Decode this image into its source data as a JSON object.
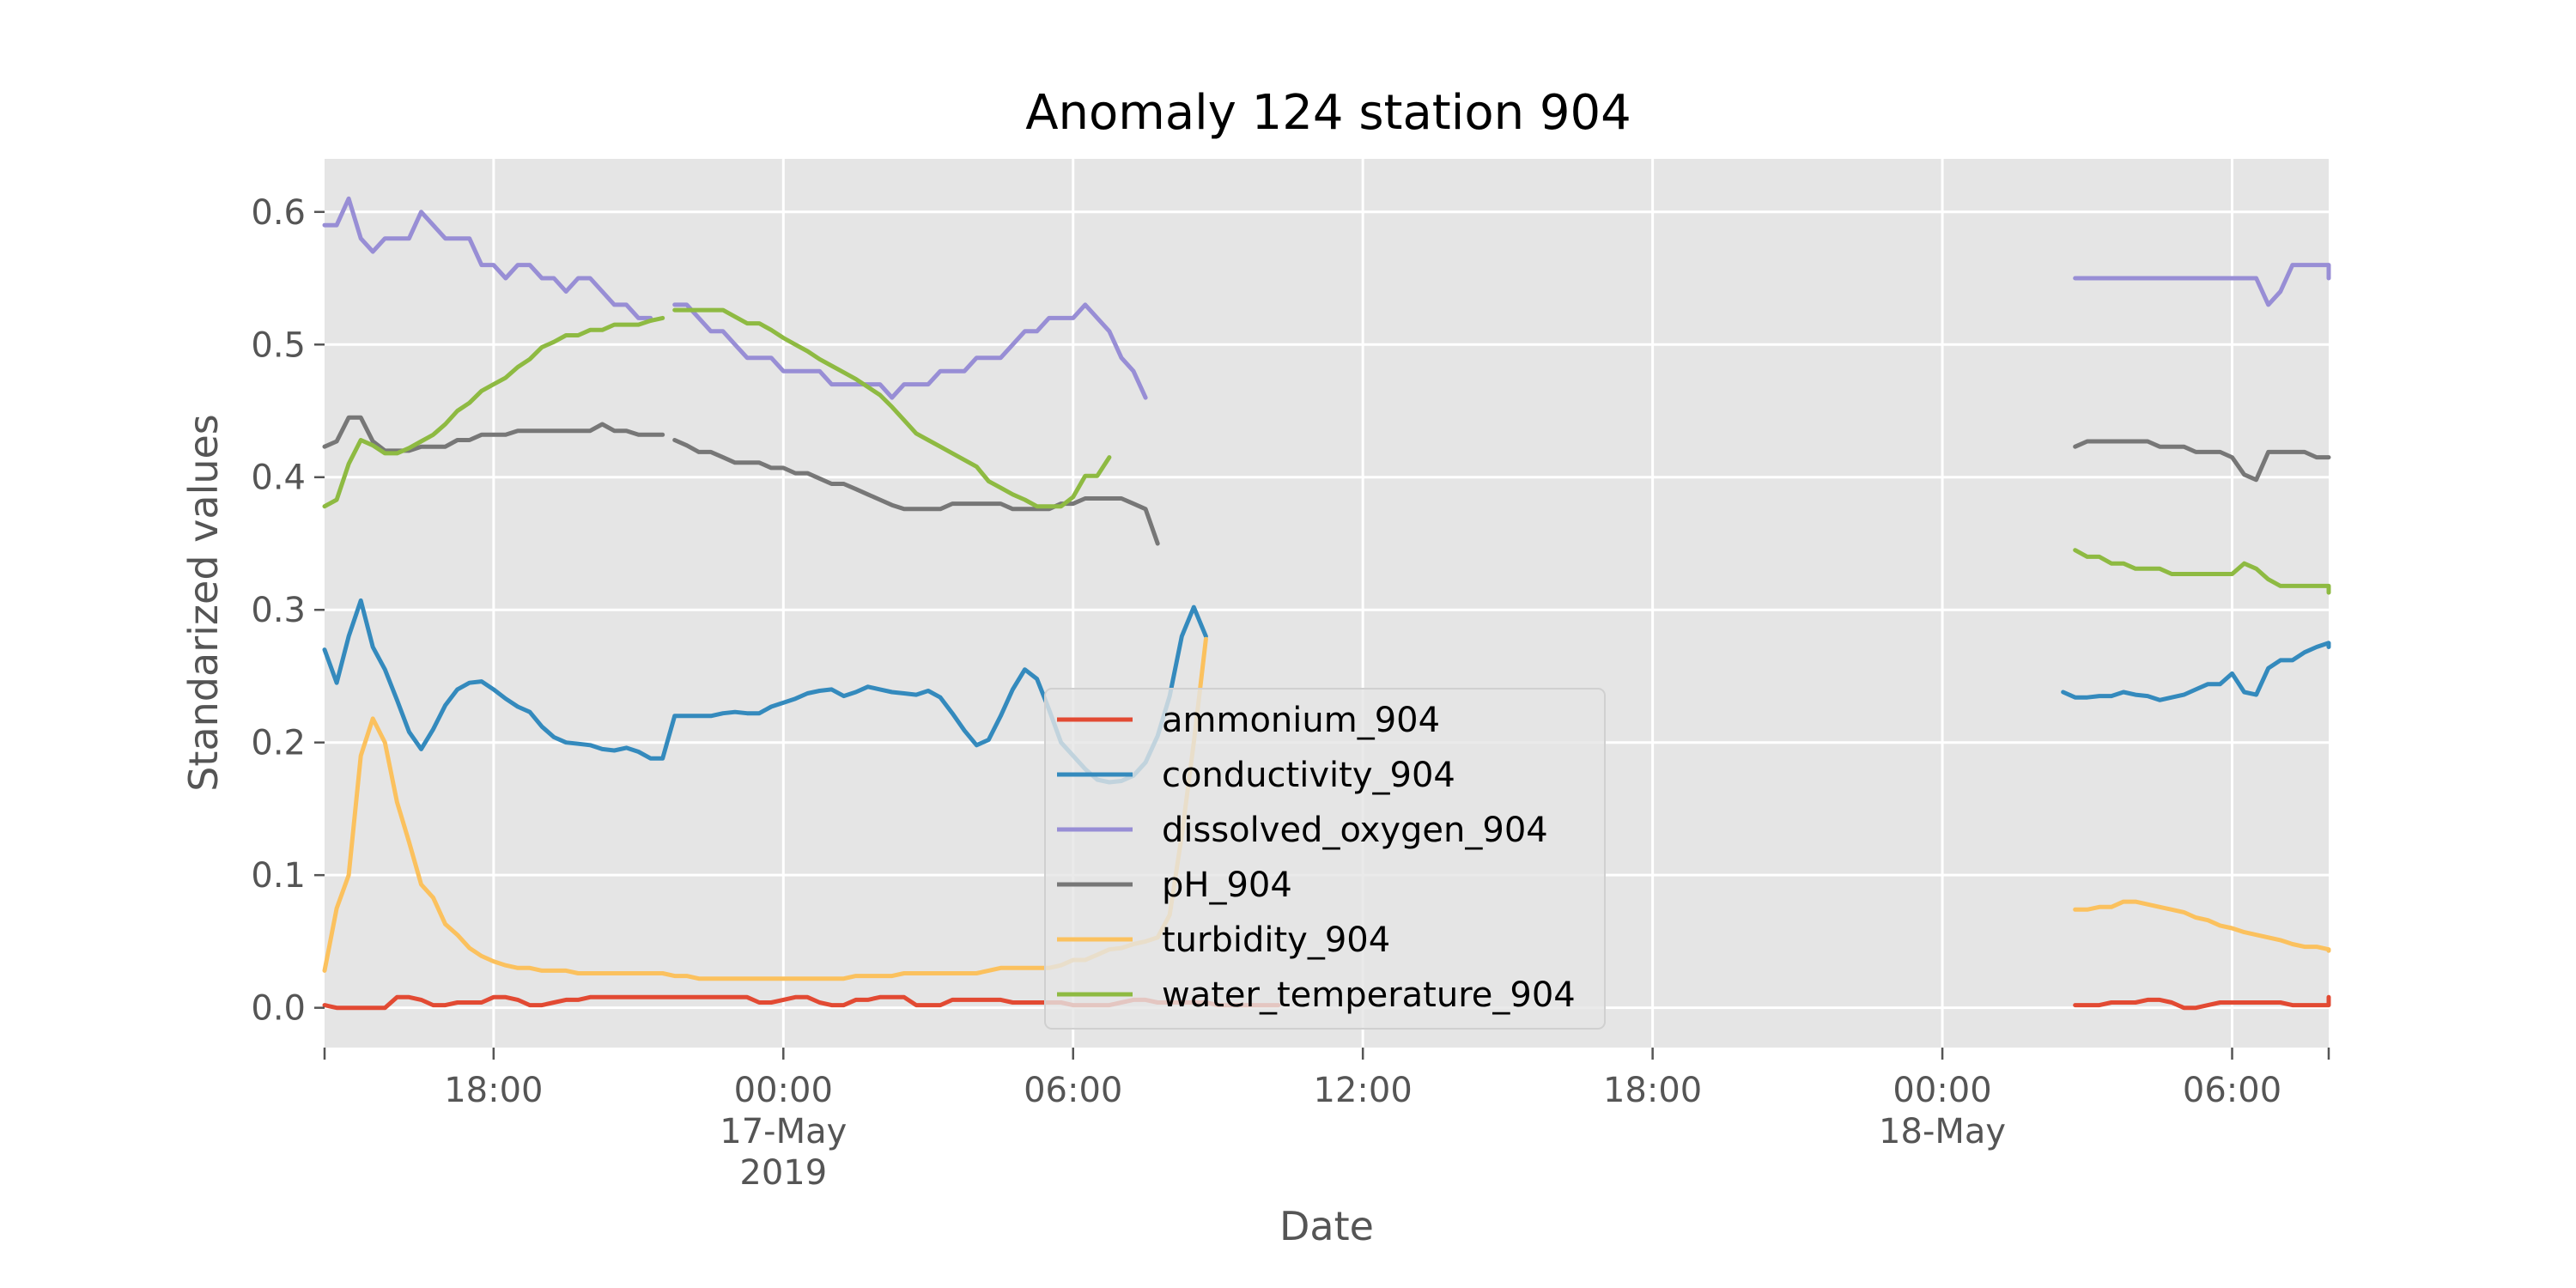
{
  "chart_data": {
    "type": "line",
    "title": "Anomaly 124 station 904",
    "xlabel": "Date",
    "ylabel": "Standarized values",
    "x_start": "2019-05-16 14:30",
    "x_end": "2019-05-18 08:00",
    "ylim": [
      -0.03,
      0.64
    ],
    "yticks": [
      "0.0",
      "0.1",
      "0.2",
      "0.3",
      "0.4",
      "0.5",
      "0.6"
    ],
    "xticks": [
      {
        "at": "2019-05-16 18:00",
        "label": "18:00"
      },
      {
        "at": "2019-05-17 00:00",
        "label": "00:00",
        "label2": "17-May",
        "label3": "2019"
      },
      {
        "at": "2019-05-17 06:00",
        "label": "06:00"
      },
      {
        "at": "2019-05-17 12:00",
        "label": "12:00"
      },
      {
        "at": "2019-05-17 18:00",
        "label": "18:00"
      },
      {
        "at": "2019-05-18 00:00",
        "label": "00:00",
        "label2": "18-May"
      },
      {
        "at": "2019-05-18 06:00",
        "label": "06:00"
      }
    ],
    "grid": true,
    "legend_position": "lower-center",
    "series": [
      {
        "name": "ammonium_904",
        "color": "#E24A33",
        "segments": [
          {
            "start": "2019-05-16 14:30",
            "step_min": 15,
            "values": [
              0.002,
              0.0,
              0.0,
              0.0,
              0.0,
              0.0,
              0.008,
              0.008,
              0.006,
              0.002,
              0.002,
              0.004,
              0.004,
              0.004,
              0.008,
              0.008,
              0.006,
              0.002,
              0.002,
              0.004,
              0.006,
              0.006,
              0.008,
              0.008,
              0.008,
              0.008,
              0.008,
              0.008,
              0.008,
              0.008,
              0.008,
              0.008,
              0.008,
              0.008,
              0.008,
              0.008,
              0.004,
              0.004,
              0.006,
              0.008,
              0.008,
              0.004,
              0.002,
              0.002,
              0.006,
              0.006,
              0.008,
              0.008,
              0.008,
              0.002,
              0.002,
              0.002,
              0.006,
              0.006,
              0.006,
              0.006,
              0.006,
              0.004,
              0.004,
              0.004,
              0.004,
              0.004,
              0.002,
              0.002,
              0.002,
              0.002,
              0.004,
              0.006,
              0.006,
              0.004,
              0.004,
              0.004,
              0.004,
              0.004,
              0.002,
              0.002,
              0.002,
              0.002,
              0.002,
              0.002
            ]
          },
          {
            "start": "2019-05-18 02:45",
            "step_min": 15,
            "values": [
              0.002,
              0.002,
              0.002,
              0.004,
              0.004,
              0.004,
              0.006,
              0.006,
              0.004,
              0.0,
              0.0,
              0.002,
              0.004,
              0.004,
              0.004,
              0.004,
              0.004,
              0.004,
              0.002,
              0.002,
              0.002,
              0.002,
              0.002,
              0.008,
              0.008
            ]
          }
        ]
      },
      {
        "name": "conductivity_904",
        "color": "#348ABD",
        "segments": [
          {
            "start": "2019-05-16 14:30",
            "step_min": 15,
            "values": [
              0.27,
              0.245,
              0.28,
              0.307,
              0.272,
              0.255,
              0.232,
              0.208,
              0.195,
              0.21,
              0.228,
              0.24,
              0.245,
              0.246,
              0.24,
              0.233,
              0.227,
              0.223,
              0.212,
              0.204,
              0.2,
              0.199,
              0.198,
              0.195,
              0.194,
              0.196,
              0.193,
              0.188,
              0.188,
              0.22,
              0.22,
              0.22,
              0.22,
              0.222,
              0.223,
              0.222,
              0.222,
              0.227,
              0.23,
              0.233,
              0.237,
              0.239,
              0.24,
              0.235,
              0.238,
              0.242,
              0.24,
              0.238,
              0.237,
              0.236,
              0.239,
              0.234,
              0.222,
              0.209,
              0.198,
              0.202,
              0.22,
              0.24,
              0.255,
              0.248,
              0.225,
              0.2,
              0.19,
              0.18,
              0.172,
              0.17,
              0.171,
              0.175,
              0.185,
              0.205,
              0.235,
              0.28,
              0.302,
              0.28
            ]
          },
          {
            "start": "2019-05-18 02:30",
            "step_min": 15,
            "values": [
              0.238,
              0.234,
              0.234,
              0.235,
              0.235,
              0.238,
              0.236,
              0.235,
              0.232,
              0.234,
              0.236,
              0.24,
              0.244,
              0.244,
              0.252,
              0.238,
              0.236,
              0.256,
              0.262,
              0.262,
              0.268,
              0.272,
              0.275,
              0.272
            ]
          }
        ]
      },
      {
        "name": "dissolved_oxygen_904",
        "color": "#988ED5",
        "segments": [
          {
            "start": "2019-05-16 14:30",
            "step_min": 15,
            "values": [
              0.59,
              0.59,
              0.61,
              0.58,
              0.57,
              0.58,
              0.58,
              0.58,
              0.6,
              0.59,
              0.58,
              0.58,
              0.58,
              0.56,
              0.56,
              0.55,
              0.56,
              0.56,
              0.55,
              0.55,
              0.54,
              0.55,
              0.55,
              0.54,
              0.53,
              0.53,
              0.52,
              0.52
            ]
          },
          {
            "start": "2019-05-16 21:45",
            "step_min": 15,
            "values": [
              0.53,
              0.53,
              0.52,
              0.51,
              0.51,
              0.5,
              0.49,
              0.49,
              0.49,
              0.48,
              0.48,
              0.48,
              0.48,
              0.47,
              0.47,
              0.47,
              0.47,
              0.47,
              0.46,
              0.47,
              0.47,
              0.47,
              0.48,
              0.48,
              0.48,
              0.49,
              0.49,
              0.49,
              0.5,
              0.51,
              0.51,
              0.52,
              0.52,
              0.52,
              0.53,
              0.52,
              0.51,
              0.49,
              0.48,
              0.46
            ]
          },
          {
            "start": "2019-05-18 02:45",
            "step_min": 15,
            "values": [
              0.55,
              0.55,
              0.55,
              0.55,
              0.55,
              0.55,
              0.55,
              0.55,
              0.55,
              0.55,
              0.55,
              0.55,
              0.55,
              0.55,
              0.55,
              0.55,
              0.53,
              0.54,
              0.56,
              0.56,
              0.56,
              0.56,
              0.55,
              0.55,
              0.55
            ]
          }
        ]
      },
      {
        "name": "pH_904",
        "color": "#777777",
        "segments": [
          {
            "start": "2019-05-16 14:30",
            "step_min": 15,
            "values": [
              0.423,
              0.427,
              0.445,
              0.445,
              0.427,
              0.42,
              0.42,
              0.42,
              0.423,
              0.423,
              0.423,
              0.428,
              0.428,
              0.432,
              0.432,
              0.432,
              0.435,
              0.435,
              0.435,
              0.435,
              0.435,
              0.435,
              0.435,
              0.44,
              0.435,
              0.435,
              0.432,
              0.432,
              0.432
            ]
          },
          {
            "start": "2019-05-16 21:45",
            "step_min": 15,
            "values": [
              0.428,
              0.424,
              0.419,
              0.419,
              0.415,
              0.411,
              0.411,
              0.411,
              0.407,
              0.407,
              0.403,
              0.403,
              0.399,
              0.395,
              0.395,
              0.391,
              0.387,
              0.383,
              0.379,
              0.376,
              0.376,
              0.376,
              0.376,
              0.38,
              0.38,
              0.38,
              0.38,
              0.38,
              0.376,
              0.376,
              0.376,
              0.376,
              0.38,
              0.38,
              0.384,
              0.384,
              0.384,
              0.384,
              0.38,
              0.376,
              0.35
            ]
          },
          {
            "start": "2019-05-18 02:45",
            "step_min": 15,
            "values": [
              0.423,
              0.427,
              0.427,
              0.427,
              0.427,
              0.427,
              0.427,
              0.423,
              0.423,
              0.423,
              0.419,
              0.419,
              0.419,
              0.415,
              0.402,
              0.398,
              0.419,
              0.419,
              0.419,
              0.419,
              0.415,
              0.415,
              0.415
            ]
          }
        ]
      },
      {
        "name": "turbidity_904",
        "color": "#FBC15E",
        "segments": [
          {
            "start": "2019-05-16 14:30",
            "step_min": 15,
            "values": [
              0.028,
              0.075,
              0.1,
              0.19,
              0.218,
              0.2,
              0.155,
              0.125,
              0.093,
              0.083,
              0.063,
              0.055,
              0.045,
              0.039,
              0.035,
              0.032,
              0.03,
              0.03,
              0.028,
              0.028,
              0.028,
              0.026,
              0.026,
              0.026,
              0.026,
              0.026,
              0.026,
              0.026,
              0.026,
              0.024,
              0.024,
              0.022,
              0.022,
              0.022,
              0.022,
              0.022,
              0.022,
              0.022,
              0.022,
              0.022,
              0.022,
              0.022,
              0.022,
              0.022,
              0.024,
              0.024,
              0.024,
              0.024,
              0.026,
              0.026,
              0.026,
              0.026,
              0.026,
              0.026,
              0.026,
              0.028,
              0.03,
              0.03,
              0.03,
              0.03,
              0.03,
              0.032,
              0.036,
              0.036,
              0.04,
              0.044,
              0.045,
              0.048,
              0.05,
              0.053,
              0.07,
              0.13,
              0.2,
              0.278
            ]
          },
          {
            "start": "2019-05-18 02:45",
            "step_min": 15,
            "values": [
              0.074,
              0.074,
              0.076,
              0.076,
              0.08,
              0.08,
              0.078,
              0.076,
              0.074,
              0.072,
              0.068,
              0.066,
              0.062,
              0.06,
              0.057,
              0.055,
              0.053,
              0.051,
              0.048,
              0.046,
              0.046,
              0.044,
              0.044,
              0.043
            ]
          }
        ]
      },
      {
        "name": "water_temperature_904",
        "color": "#8EBA42",
        "segments": [
          {
            "start": "2019-05-16 14:30",
            "step_min": 15,
            "values": [
              0.378,
              0.383,
              0.41,
              0.428,
              0.424,
              0.418,
              0.418,
              0.422,
              0.427,
              0.432,
              0.44,
              0.45,
              0.456,
              0.465,
              0.47,
              0.475,
              0.483,
              0.489,
              0.498,
              0.502,
              0.507,
              0.507,
              0.511,
              0.511,
              0.515,
              0.515,
              0.515,
              0.518,
              0.52
            ]
          },
          {
            "start": "2019-05-16 21:45",
            "step_min": 15,
            "values": [
              0.526,
              0.526,
              0.526,
              0.526,
              0.526,
              0.521,
              0.516,
              0.516,
              0.511,
              0.505,
              0.5,
              0.495,
              0.489,
              0.484,
              0.479,
              0.474,
              0.468,
              0.462,
              0.453,
              0.443,
              0.433,
              0.428,
              0.423,
              0.418,
              0.413,
              0.408,
              0.397,
              0.392,
              0.387,
              0.383,
              0.378,
              0.378,
              0.378,
              0.385,
              0.401,
              0.401,
              0.415
            ]
          },
          {
            "start": "2019-05-18 02:45",
            "step_min": 15,
            "values": [
              0.345,
              0.34,
              0.34,
              0.335,
              0.335,
              0.331,
              0.331,
              0.331,
              0.327,
              0.327,
              0.327,
              0.327,
              0.327,
              0.327,
              0.335,
              0.331,
              0.323,
              0.318,
              0.318,
              0.318,
              0.318,
              0.318,
              0.318,
              0.313
            ]
          }
        ]
      }
    ]
  }
}
